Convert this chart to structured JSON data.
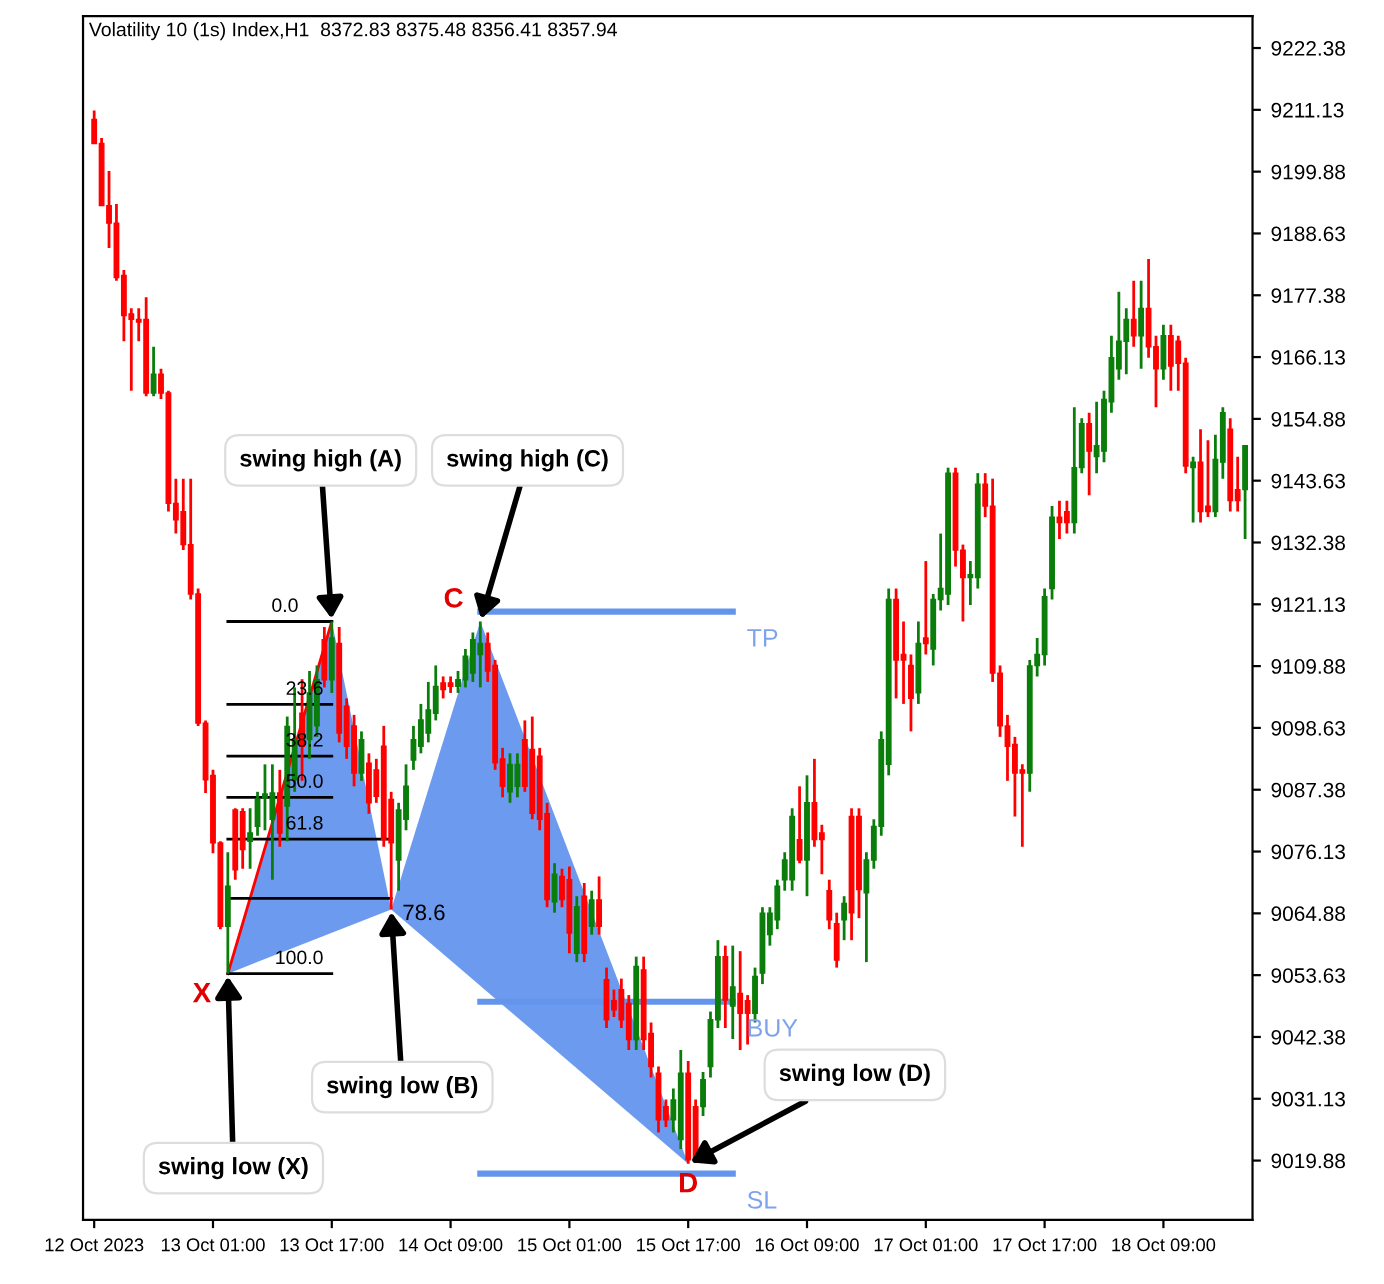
{
  "chart_data": {
    "type": "candlestick",
    "title": "Volatility 10 (1s) Index,H1  8372.83 8375.48 8356.41 8357.94",
    "x": [
      "2023-10-12T09:00",
      "2023-10-12T10:00",
      "2023-10-12T11:00",
      "2023-10-12T12:00",
      "2023-10-12T13:00",
      "2023-10-12T14:00",
      "2023-10-12T15:00",
      "2023-10-12T16:00",
      "2023-10-12T17:00",
      "2023-10-12T18:00",
      "2023-10-12T19:00",
      "2023-10-12T20:00",
      "2023-10-12T21:00",
      "2023-10-12T22:00",
      "2023-10-12T23:00",
      "2023-10-13T00:00",
      "2023-10-13T01:00",
      "2023-10-13T02:00",
      "2023-10-13T03:00",
      "2023-10-13T04:00",
      "2023-10-13T05:00",
      "2023-10-13T06:00",
      "2023-10-13T07:00",
      "2023-10-13T08:00",
      "2023-10-13T09:00",
      "2023-10-13T10:00",
      "2023-10-13T11:00",
      "2023-10-13T12:00",
      "2023-10-13T13:00",
      "2023-10-13T14:00",
      "2023-10-13T15:00",
      "2023-10-13T16:00",
      "2023-10-13T17:00",
      "2023-10-13T18:00",
      "2023-10-13T19:00",
      "2023-10-13T20:00",
      "2023-10-13T21:00",
      "2023-10-13T22:00",
      "2023-10-13T23:00",
      "2023-10-14T00:00",
      "2023-10-14T01:00",
      "2023-10-14T02:00",
      "2023-10-14T03:00",
      "2023-10-14T04:00",
      "2023-10-14T05:00",
      "2023-10-14T06:00",
      "2023-10-14T07:00",
      "2023-10-14T08:00",
      "2023-10-14T09:00",
      "2023-10-14T10:00",
      "2023-10-14T11:00",
      "2023-10-14T12:00",
      "2023-10-14T13:00",
      "2023-10-14T14:00",
      "2023-10-14T15:00",
      "2023-10-14T16:00",
      "2023-10-14T17:00",
      "2023-10-14T18:00",
      "2023-10-14T19:00",
      "2023-10-14T20:00",
      "2023-10-14T21:00",
      "2023-10-14T22:00",
      "2023-10-14T23:00",
      "2023-10-15T00:00",
      "2023-10-15T01:00",
      "2023-10-15T02:00",
      "2023-10-15T03:00",
      "2023-10-15T04:00",
      "2023-10-15T05:00",
      "2023-10-15T06:00",
      "2023-10-15T07:00",
      "2023-10-15T08:00",
      "2023-10-15T09:00",
      "2023-10-15T10:00",
      "2023-10-15T11:00",
      "2023-10-15T12:00",
      "2023-10-15T13:00",
      "2023-10-15T14:00",
      "2023-10-15T15:00",
      "2023-10-15T16:00",
      "2023-10-15T17:00",
      "2023-10-15T18:00",
      "2023-10-15T19:00",
      "2023-10-15T20:00",
      "2023-10-15T21:00",
      "2023-10-15T22:00",
      "2023-10-15T23:00",
      "2023-10-16T00:00",
      "2023-10-16T01:00",
      "2023-10-16T02:00",
      "2023-10-16T03:00",
      "2023-10-16T04:00",
      "2023-10-16T05:00",
      "2023-10-16T06:00",
      "2023-10-16T07:00",
      "2023-10-16T08:00",
      "2023-10-16T09:00",
      "2023-10-16T10:00",
      "2023-10-16T11:00",
      "2023-10-16T12:00",
      "2023-10-16T13:00",
      "2023-10-16T14:00",
      "2023-10-16T15:00",
      "2023-10-16T16:00",
      "2023-10-16T17:00",
      "2023-10-16T18:00",
      "2023-10-16T19:00",
      "2023-10-16T20:00",
      "2023-10-16T21:00",
      "2023-10-16T22:00",
      "2023-10-16T23:00",
      "2023-10-17T00:00",
      "2023-10-17T01:00",
      "2023-10-17T02:00",
      "2023-10-17T03:00",
      "2023-10-17T04:00",
      "2023-10-17T05:00",
      "2023-10-17T06:00",
      "2023-10-17T07:00",
      "2023-10-17T08:00",
      "2023-10-17T09:00",
      "2023-10-17T10:00",
      "2023-10-17T11:00",
      "2023-10-17T12:00",
      "2023-10-17T13:00",
      "2023-10-17T14:00",
      "2023-10-17T15:00",
      "2023-10-17T16:00",
      "2023-10-17T17:00",
      "2023-10-17T18:00",
      "2023-10-17T19:00",
      "2023-10-17T20:00",
      "2023-10-17T21:00",
      "2023-10-17T22:00",
      "2023-10-17T23:00",
      "2023-10-18T00:00",
      "2023-10-18T01:00",
      "2023-10-18T02:00",
      "2023-10-18T03:00",
      "2023-10-18T04:00",
      "2023-10-18T05:00",
      "2023-10-18T06:00",
      "2023-10-18T07:00",
      "2023-10-18T08:00",
      "2023-10-18T09:00",
      "2023-10-18T10:00",
      "2023-10-18T11:00",
      "2023-10-18T12:00",
      "2023-10-18T13:00",
      "2023-10-18T14:00",
      "2023-10-18T15:00",
      "2023-10-18T16:00",
      "2023-10-18T17:00",
      "2023-10-18T18:00",
      "2023-10-18T19:00",
      "2023-10-18T20:00"
    ],
    "ohlc": [
      [
        9209.4,
        9211,
        9205,
        9205
      ],
      [
        9205,
        9206,
        9193.7,
        9193.7
      ],
      [
        9193.7,
        9200,
        9186,
        9190.5
      ],
      [
        9190.5,
        9194,
        9180,
        9180.6
      ],
      [
        9181,
        9182,
        9169,
        9173.7
      ],
      [
        9174,
        9175,
        9160,
        9173
      ],
      [
        9173,
        9175,
        9169,
        9172.5
      ],
      [
        9173,
        9177,
        9159,
        9159.6
      ],
      [
        9159.6,
        9168,
        9159,
        9163
      ],
      [
        9163,
        9164,
        9158.5,
        9159.6
      ],
      [
        9159.6,
        9160,
        9138,
        9139.5
      ],
      [
        9139.5,
        9144,
        9134,
        9136.5
      ],
      [
        9138,
        9144,
        9131,
        9132
      ],
      [
        9132,
        9144,
        9122,
        9123
      ],
      [
        9123,
        9124,
        9099,
        9099.5
      ],
      [
        9099.5,
        9100,
        9086.8,
        9089.2
      ],
      [
        9090,
        9091,
        9075.8,
        9077.7
      ],
      [
        9077.7,
        9078,
        9062,
        9062.5
      ],
      [
        9062.5,
        9076,
        9053.9,
        9069.8
      ],
      [
        9083.7,
        9084,
        9071,
        9072.8
      ],
      [
        9083.4,
        9084,
        9073,
        9076.5
      ],
      [
        9078,
        9084,
        9073,
        9079.5
      ],
      [
        9080.7,
        9087,
        9079,
        9085.6
      ],
      [
        9085.9,
        9092,
        9080,
        9086.6
      ],
      [
        9082,
        9092,
        9071,
        9086.8
      ],
      [
        9086.8,
        9091,
        9077,
        9079.5
      ],
      [
        9084.4,
        9100.7,
        9078,
        9098.9
      ],
      [
        9089.2,
        9106,
        9087,
        9096.5
      ],
      [
        9101.3,
        9107.5,
        9089,
        9095.3
      ],
      [
        9096.5,
        9109,
        9093,
        9105
      ],
      [
        9099,
        9110,
        9097,
        9107.4
      ],
      [
        9114.7,
        9117,
        9106,
        9107.4
      ],
      [
        9107.4,
        9118,
        9105,
        9115
      ],
      [
        9114,
        9117,
        9096,
        9097.7
      ],
      [
        9102.6,
        9104,
        9093,
        9095.3
      ],
      [
        9099,
        9101,
        9088,
        9090.4
      ],
      [
        9090.4,
        9098,
        9089,
        9096.5
      ],
      [
        9092.2,
        9094,
        9083,
        9085
      ],
      [
        9091,
        9093,
        9085,
        9086.2
      ],
      [
        9095.3,
        9099,
        9077,
        9078.3
      ],
      [
        9085.6,
        9087,
        9065.6,
        9077.7
      ],
      [
        9074.6,
        9085,
        9069,
        9083.7
      ],
      [
        9082,
        9092,
        9080,
        9088
      ],
      [
        9092.8,
        9099,
        9091,
        9096.5
      ],
      [
        9095.3,
        9103,
        9094,
        9100.1
      ],
      [
        9097.7,
        9107,
        9096,
        9101.9
      ],
      [
        9101.3,
        9110,
        9100,
        9106.2
      ],
      [
        9106.8,
        9108,
        9104,
        9105.6
      ],
      [
        9106.8,
        9108,
        9105,
        9106.2
      ],
      [
        9106.2,
        9109,
        9105,
        9107.4
      ],
      [
        9107.4,
        9113,
        9106,
        9111.7
      ],
      [
        9108.6,
        9116,
        9107,
        9114.7
      ],
      [
        9112,
        9118,
        9106,
        9114
      ],
      [
        9114,
        9116,
        9107,
        9109
      ],
      [
        9110,
        9111,
        9091,
        9092.3
      ],
      [
        9093,
        9095,
        9086,
        9088
      ],
      [
        9087,
        9094,
        9085,
        9092
      ],
      [
        9088,
        9094,
        9086,
        9092
      ],
      [
        9096.5,
        9100,
        9087,
        9088
      ],
      [
        9094.7,
        9100.7,
        9082,
        9083.1
      ],
      [
        9093.5,
        9095,
        9080,
        9082
      ],
      [
        9083,
        9085,
        9066,
        9067.4
      ],
      [
        9067,
        9074,
        9065,
        9072
      ],
      [
        9071.6,
        9073,
        9066,
        9067.4
      ],
      [
        9071,
        9073.4,
        9057.6,
        9061.3
      ],
      [
        9057.6,
        9068,
        9056,
        9066.1
      ],
      [
        9068,
        9070.4,
        9056,
        9057.6
      ],
      [
        9062.5,
        9069,
        9061,
        9067.3
      ],
      [
        9067.3,
        9071.6,
        9061,
        9062.5
      ],
      [
        9052.8,
        9055,
        9044,
        9045.5
      ],
      [
        9049,
        9051,
        9046,
        9047.3
      ],
      [
        9051,
        9053,
        9044,
        9045.5
      ],
      [
        9048.5,
        9050,
        9040,
        9041.9
      ],
      [
        9041.9,
        9057,
        9040,
        9055.2
      ],
      [
        9054.6,
        9057,
        9040,
        9041.9
      ],
      [
        9043,
        9045,
        9035,
        9037
      ],
      [
        9035.8,
        9037,
        9025,
        9027.3
      ],
      [
        9029.7,
        9031,
        9026,
        9027.3
      ],
      [
        9027.3,
        9033,
        9025,
        9030.9
      ],
      [
        9023.7,
        9040,
        9022,
        9035.8
      ],
      [
        9035.8,
        9038,
        9019.3,
        9020
      ],
      [
        9029.7,
        9031,
        9019.5,
        9020
      ],
      [
        9029.7,
        9036,
        9028,
        9034.6
      ],
      [
        9037,
        9047,
        9035,
        9045.5
      ],
      [
        9045.5,
        9060,
        9044,
        9057
      ],
      [
        9057,
        9059,
        9044,
        9049.1
      ],
      [
        9048,
        9059,
        9042,
        9051.5
      ],
      [
        9050.3,
        9058,
        9040,
        9046.7
      ],
      [
        9049,
        9050,
        9041,
        9046.7
      ],
      [
        9046.7,
        9055,
        9045,
        9053.4
      ],
      [
        9054,
        9066,
        9052,
        9064.9
      ],
      [
        9061,
        9066,
        9059,
        9064.9
      ],
      [
        9063.7,
        9071,
        9062,
        9069.8
      ],
      [
        9071,
        9076,
        9069,
        9074.6
      ],
      [
        9071,
        9084,
        9069,
        9082.5
      ],
      [
        9078.3,
        9088,
        9074,
        9074.6
      ],
      [
        9074.6,
        9090,
        9068,
        9085
      ],
      [
        9085,
        9093,
        9077,
        9078.3
      ],
      [
        9079.5,
        9081,
        9072,
        9078.3
      ],
      [
        9069,
        9071,
        9062,
        9063.7
      ],
      [
        9063,
        9065,
        9055,
        9056.4
      ],
      [
        9063.7,
        9068,
        9060,
        9066.7
      ],
      [
        9082.5,
        9084,
        9060,
        9065
      ],
      [
        9082.5,
        9084,
        9064,
        9069.2
      ],
      [
        9068.6,
        9076,
        9056,
        9074.6
      ],
      [
        9074.6,
        9082,
        9073,
        9080.7
      ],
      [
        9080.7,
        9098,
        9079,
        9096.5
      ],
      [
        9092,
        9124,
        9090,
        9122
      ],
      [
        9122,
        9124,
        9104,
        9111
      ],
      [
        9112,
        9118,
        9103,
        9111
      ],
      [
        9110,
        9112,
        9098,
        9104
      ],
      [
        9105,
        9118,
        9103,
        9114
      ],
      [
        9115,
        9129,
        9112,
        9114
      ],
      [
        9113,
        9123,
        9110,
        9122
      ],
      [
        9122,
        9134,
        9120,
        9124
      ],
      [
        9123,
        9146,
        9121,
        9145
      ],
      [
        9145,
        9146,
        9128,
        9131
      ],
      [
        9131,
        9132,
        9118,
        9126
      ],
      [
        9126,
        9129,
        9121,
        9126.5
      ],
      [
        9126,
        9145,
        9124,
        9143
      ],
      [
        9143,
        9145,
        9137,
        9139
      ],
      [
        9139,
        9144,
        9107,
        9108.6
      ],
      [
        9108.6,
        9110,
        9097,
        9099
      ],
      [
        9099,
        9101,
        9089,
        9095.3
      ],
      [
        9095.6,
        9097,
        9082.5,
        9090.4
      ],
      [
        9091,
        9092,
        9077,
        9090.4
      ],
      [
        9090.4,
        9111,
        9087,
        9109.9
      ],
      [
        9110,
        9115,
        9108,
        9112
      ],
      [
        9112,
        9124,
        9110,
        9122.5
      ],
      [
        9124,
        9139,
        9122,
        9137
      ],
      [
        9137,
        9140,
        9133,
        9136
      ],
      [
        9138,
        9140,
        9134,
        9136
      ],
      [
        9136,
        9157,
        9134,
        9146
      ],
      [
        9146,
        9155,
        9145,
        9154
      ],
      [
        9154,
        9156,
        9141,
        9149
      ],
      [
        9148,
        9158,
        9145,
        9150
      ],
      [
        9149,
        9160,
        9147,
        9158.4
      ],
      [
        9158,
        9170,
        9156,
        9166
      ],
      [
        9164,
        9178,
        9162,
        9169
      ],
      [
        9169,
        9175,
        9163,
        9173
      ],
      [
        9173,
        9180,
        9168,
        9170
      ],
      [
        9170,
        9180,
        9164,
        9175
      ],
      [
        9175,
        9184,
        9166,
        9168
      ],
      [
        9168,
        9170,
        9157,
        9164
      ],
      [
        9164,
        9172,
        9162,
        9170
      ],
      [
        9170,
        9172,
        9160,
        9164.5
      ],
      [
        9169,
        9170,
        9160,
        9165
      ],
      [
        9165,
        9166,
        9145,
        9146.3
      ],
      [
        9146,
        9148,
        9136,
        9147
      ],
      [
        9147,
        9153,
        9136,
        9138
      ],
      [
        9139,
        9151,
        9137,
        9138
      ],
      [
        9138,
        9152,
        9137,
        9147.5
      ],
      [
        9147,
        9157,
        9144,
        9156
      ],
      [
        9153,
        9155,
        9138,
        9140
      ],
      [
        9142,
        9148,
        9138,
        9140
      ],
      [
        9142,
        9150,
        9133,
        9150
      ]
    ],
    "colors": [
      "#ff0000",
      "#ff0000",
      "#ff0000",
      "#ff0000",
      "#ff0000",
      "#ff0000",
      "#ff0000",
      "#ff0000",
      "#0a7d0a",
      "#ff0000",
      "#ff0000",
      "#ff0000",
      "#ff0000",
      "#ff0000",
      "#ff0000",
      "#ff0000",
      "#ff0000",
      "#ff0000",
      "#0a7d0a",
      "#ff0000",
      "#ff0000",
      "#0a7d0a",
      "#0a7d0a",
      "#0a7d0a",
      "#0a7d0a",
      "#ff0000",
      "#0a7d0a",
      "#0a7d0a",
      "#ff0000",
      "#0a7d0a",
      "#0a7d0a",
      "#ff0000",
      "#0a7d0a",
      "#ff0000",
      "#ff0000",
      "#ff0000",
      "#0a7d0a",
      "#ff0000",
      "#ff0000",
      "#ff0000",
      "#ff0000",
      "#0a7d0a",
      "#0a7d0a",
      "#0a7d0a",
      "#0a7d0a",
      "#0a7d0a",
      "#0a7d0a",
      "#ff0000",
      "#ff0000",
      "#0a7d0a",
      "#0a7d0a",
      "#0a7d0a",
      "#0a7d0a",
      "#ff0000",
      "#ff0000",
      "#ff0000",
      "#0a7d0a",
      "#0a7d0a",
      "#ff0000",
      "#ff0000",
      "#ff0000",
      "#ff0000",
      "#0a7d0a",
      "#ff0000",
      "#ff0000",
      "#0a7d0a",
      "#ff0000",
      "#0a7d0a",
      "#ff0000",
      "#ff0000",
      "#ff0000",
      "#ff0000",
      "#ff0000",
      "#0a7d0a",
      "#ff0000",
      "#ff0000",
      "#ff0000",
      "#ff0000",
      "#0a7d0a",
      "#0a7d0a",
      "#ff0000",
      "#ff0000",
      "#0a7d0a",
      "#0a7d0a",
      "#0a7d0a",
      "#ff0000",
      "#0a7d0a",
      "#ff0000",
      "#ff0000",
      "#0a7d0a",
      "#0a7d0a",
      "#0a7d0a",
      "#0a7d0a",
      "#0a7d0a",
      "#0a7d0a",
      "#ff0000",
      "#0a7d0a",
      "#ff0000",
      "#ff0000",
      "#ff0000",
      "#ff0000",
      "#0a7d0a",
      "#ff0000",
      "#ff0000",
      "#0a7d0a",
      "#0a7d0a",
      "#0a7d0a",
      "#0a7d0a",
      "#ff0000",
      "#ff0000",
      "#ff0000",
      "#0a7d0a",
      "#ff0000",
      "#0a7d0a",
      "#0a7d0a",
      "#0a7d0a",
      "#ff0000",
      "#ff0000",
      "#0a7d0a",
      "#0a7d0a",
      "#ff0000",
      "#ff0000",
      "#ff0000",
      "#ff0000",
      "#ff0000",
      "#ff0000",
      "#0a7d0a",
      "#0a7d0a",
      "#0a7d0a",
      "#0a7d0a",
      "#ff0000",
      "#ff0000",
      "#0a7d0a",
      "#0a7d0a",
      "#ff0000",
      "#0a7d0a",
      "#0a7d0a",
      "#0a7d0a",
      "#0a7d0a",
      "#0a7d0a",
      "#ff0000",
      "#0a7d0a",
      "#ff0000",
      "#ff0000",
      "#0a7d0a",
      "#ff0000",
      "#ff0000",
      "#ff0000",
      "#0a7d0a",
      "#ff0000",
      "#ff0000",
      "#0a7d0a",
      "#0a7d0a",
      "#ff0000",
      "#ff0000",
      "#0a7d0a"
    ],
    "series": [
      {
        "type": "area",
        "x": [
          "2023-10-13T03:00",
          "2023-10-13T17:00",
          "2023-10-14T01:00"
        ],
        "values": [
          9053.9,
          9118,
          9065.6
        ],
        "color": "#6495ed"
      },
      {
        "type": "area",
        "x": [
          "2023-10-14T01:00",
          "2023-10-14T13:00",
          "2023-10-15T17:00"
        ],
        "values": [
          9065.6,
          9118,
          9019.3
        ],
        "color": "#6495ed"
      },
      {
        "type": "line",
        "x": [
          "2023-10-13T03:00",
          "2023-10-13T17:00"
        ],
        "values": [
          9053.9,
          9118
        ],
        "color": "#ff0000"
      },
      {
        "type": "line",
        "x": [
          "2023-10-13T03:00",
          "2023-10-13T17:00"
        ],
        "values": [
          9118,
          9118
        ],
        "color": "#000000"
      },
      {
        "type": "line",
        "x": [
          "2023-10-13T03:00",
          "2023-10-13T17:00"
        ],
        "values": [
          9102.9,
          9102.9
        ],
        "color": "#000000"
      },
      {
        "type": "line",
        "x": [
          "2023-10-13T03:00",
          "2023-10-13T17:00"
        ],
        "values": [
          9093.5,
          9093.5
        ],
        "color": "#000000"
      },
      {
        "type": "line",
        "x": [
          "2023-10-13T03:00",
          "2023-10-13T17:00"
        ],
        "values": [
          9086,
          9086
        ],
        "color": "#000000"
      },
      {
        "type": "line",
        "x": [
          "2023-10-13T03:00",
          "2023-10-14T01:00"
        ],
        "values": [
          9078.4,
          9078.4
        ],
        "color": "#000000"
      },
      {
        "type": "line",
        "x": [
          "2023-10-13T03:00",
          "2023-10-14T01:00"
        ],
        "values": [
          9067.6,
          9067.6
        ],
        "color": "#000000"
      },
      {
        "type": "line",
        "x": [
          "2023-10-13T03:00",
          "2023-10-13T17:00"
        ],
        "values": [
          9053.9,
          9053.9
        ],
        "color": "#000000"
      },
      {
        "type": "line",
        "x": [
          "2023-10-14T13:00",
          "2023-10-15T23:00"
        ],
        "values": [
          9119.8,
          9119.8
        ],
        "color": "#6495ed"
      },
      {
        "type": "line",
        "x": [
          "2023-10-14T13:00",
          "2023-10-15T23:00"
        ],
        "values": [
          9048.8,
          9048.8
        ],
        "color": "#6495ed"
      },
      {
        "type": "line",
        "x": [
          "2023-10-14T13:00",
          "2023-10-15T23:00"
        ],
        "values": [
          9017.5,
          9017.5
        ],
        "color": "#6495ed"
      }
    ],
    "annotations": [
      {
        "text": "swing high (A)",
        "x": "2023-10-13T17:00",
        "y": 9118
      },
      {
        "text": "swing high (C)",
        "x": "2023-10-14T13:00",
        "y": 9118
      },
      {
        "text": "swing low (X)",
        "x": "2023-10-13T03:00",
        "y": 9053.9
      },
      {
        "text": "swing low (B)",
        "x": "2023-10-14T01:00",
        "y": 9065.6
      },
      {
        "text": "swing low (D)",
        "x": "2023-10-15T17:00",
        "y": 9019.3
      },
      {
        "text": "0.0",
        "x": "2023-10-13T17:00",
        "y": 9118
      },
      {
        "text": "23.6",
        "x": "2023-10-13T17:00",
        "y": 9102.9
      },
      {
        "text": "38.2",
        "x": "2023-10-13T17:00",
        "y": 9093.5
      },
      {
        "text": "50.0",
        "x": "2023-10-13T17:00",
        "y": 9086
      },
      {
        "text": "61.8",
        "x": "2023-10-13T17:00",
        "y": 9078.4
      },
      {
        "text": "100.0",
        "x": "2023-10-13T17:00",
        "y": 9053.9
      },
      {
        "text": "78.6",
        "x": "2023-10-14T01:00",
        "y": 9067.6
      },
      {
        "text": "X",
        "x": "2023-10-13T03:00",
        "y": 9053.9
      },
      {
        "text": "C",
        "x": "2023-10-14T13:00",
        "y": 9118
      },
      {
        "text": "D",
        "x": "2023-10-15T17:00",
        "y": 9019.3
      },
      {
        "text": "TP",
        "x": "2023-10-15T23:00",
        "y": 9119.8
      },
      {
        "text": "BUY",
        "x": "2023-10-15T23:00",
        "y": 9048.8
      },
      {
        "text": "SL",
        "x": "2023-10-15T23:00",
        "y": 9017.5
      }
    ],
    "xlim": [
      "2023-10-12T07:30",
      "2023-10-18T21:00"
    ],
    "xticks": [
      {
        "value": "2023-10-12T09:00",
        "label": "12 Oct 2023"
      },
      {
        "value": "2023-10-13T01:00",
        "label": "13 Oct 01:00"
      },
      {
        "value": "2023-10-13T17:00",
        "label": "13 Oct 17:00"
      },
      {
        "value": "2023-10-14T09:00",
        "label": "14 Oct 09:00"
      },
      {
        "value": "2023-10-15T01:00",
        "label": "15 Oct 01:00"
      },
      {
        "value": "2023-10-15T17:00",
        "label": "15 Oct 17:00"
      },
      {
        "value": "2023-10-16T09:00",
        "label": "16 Oct 09:00"
      },
      {
        "value": "2023-10-17T01:00",
        "label": "17 Oct 01:00"
      },
      {
        "value": "2023-10-17T17:00",
        "label": "17 Oct 17:00"
      },
      {
        "value": "2023-10-18T09:00",
        "label": "18 Oct 09:00"
      }
    ],
    "ylim": [
      9009.1,
      9228.2
    ],
    "yticks": [
      9222.38,
      9211.13,
      9199.88,
      9188.63,
      9177.38,
      9166.13,
      9154.88,
      9143.63,
      9132.38,
      9121.13,
      9109.88,
      9098.63,
      9087.38,
      9076.13,
      9064.88,
      9053.63,
      9042.38,
      9031.13,
      9019.88
    ],
    "grid": false,
    "legend": false
  }
}
